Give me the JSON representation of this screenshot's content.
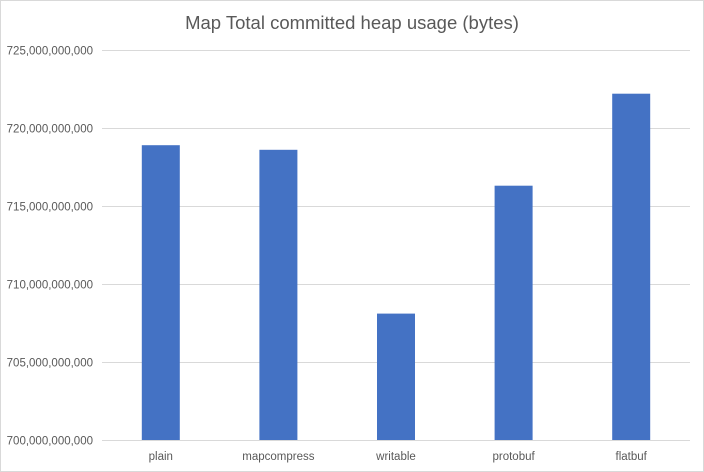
{
  "chart_data": {
    "type": "bar",
    "title": "Map Total committed heap usage (bytes)",
    "xlabel": "",
    "ylabel": "",
    "categories": [
      "plain",
      "mapcompress",
      "writable",
      "protobuf",
      "flatbuf"
    ],
    "values": [
      718900000000,
      718600000000,
      708100000000,
      716300000000,
      722200000000
    ],
    "ylim": [
      700000000000,
      725000000000
    ],
    "yticks": [
      700000000000,
      705000000000,
      710000000000,
      715000000000,
      720000000000,
      725000000000
    ],
    "ytick_labels": [
      "700,000,000,000",
      "705,000,000,000",
      "710,000,000,000",
      "715,000,000,000",
      "720,000,000,000",
      "725,000,000,000"
    ],
    "grid": true,
    "legend": "none",
    "bar_color": "#4472c4",
    "grid_color": "#d9d9d9",
    "text_color": "#595959"
  }
}
